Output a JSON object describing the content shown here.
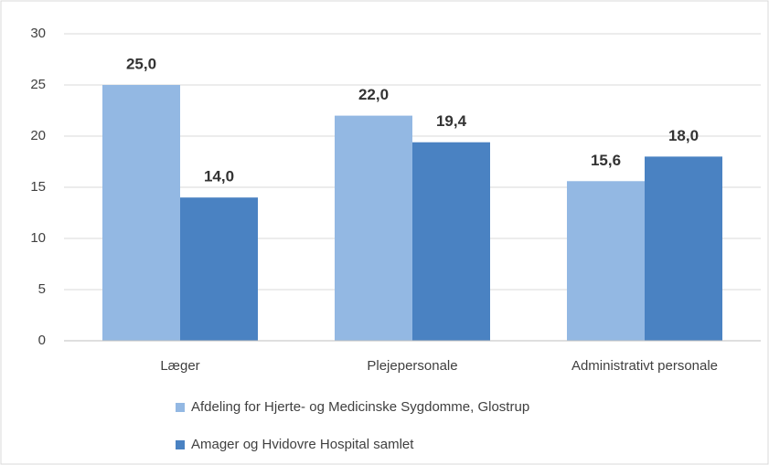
{
  "chart_data": {
    "type": "bar",
    "categories": [
      "Læger",
      "Plejepersonale",
      "Administrativt personale"
    ],
    "series": [
      {
        "name": "Afdeling for Hjerte- og Medicinske Sygdomme, Glostrup",
        "color": "#93b8e3",
        "values": [
          25.0,
          22.0,
          15.6
        ],
        "value_labels": [
          "25,0",
          "22,0",
          "15,6"
        ]
      },
      {
        "name": "Amager og Hvidovre Hospital samlet",
        "color": "#4a82c2",
        "values": [
          14.0,
          19.4,
          18.0
        ],
        "value_labels": [
          "14,0",
          "19,4",
          "18,0"
        ]
      }
    ],
    "ylim": [
      0,
      30
    ],
    "yticks": [
      0,
      5,
      10,
      15,
      20,
      25,
      30
    ],
    "grid": true,
    "legend": "bottom"
  }
}
